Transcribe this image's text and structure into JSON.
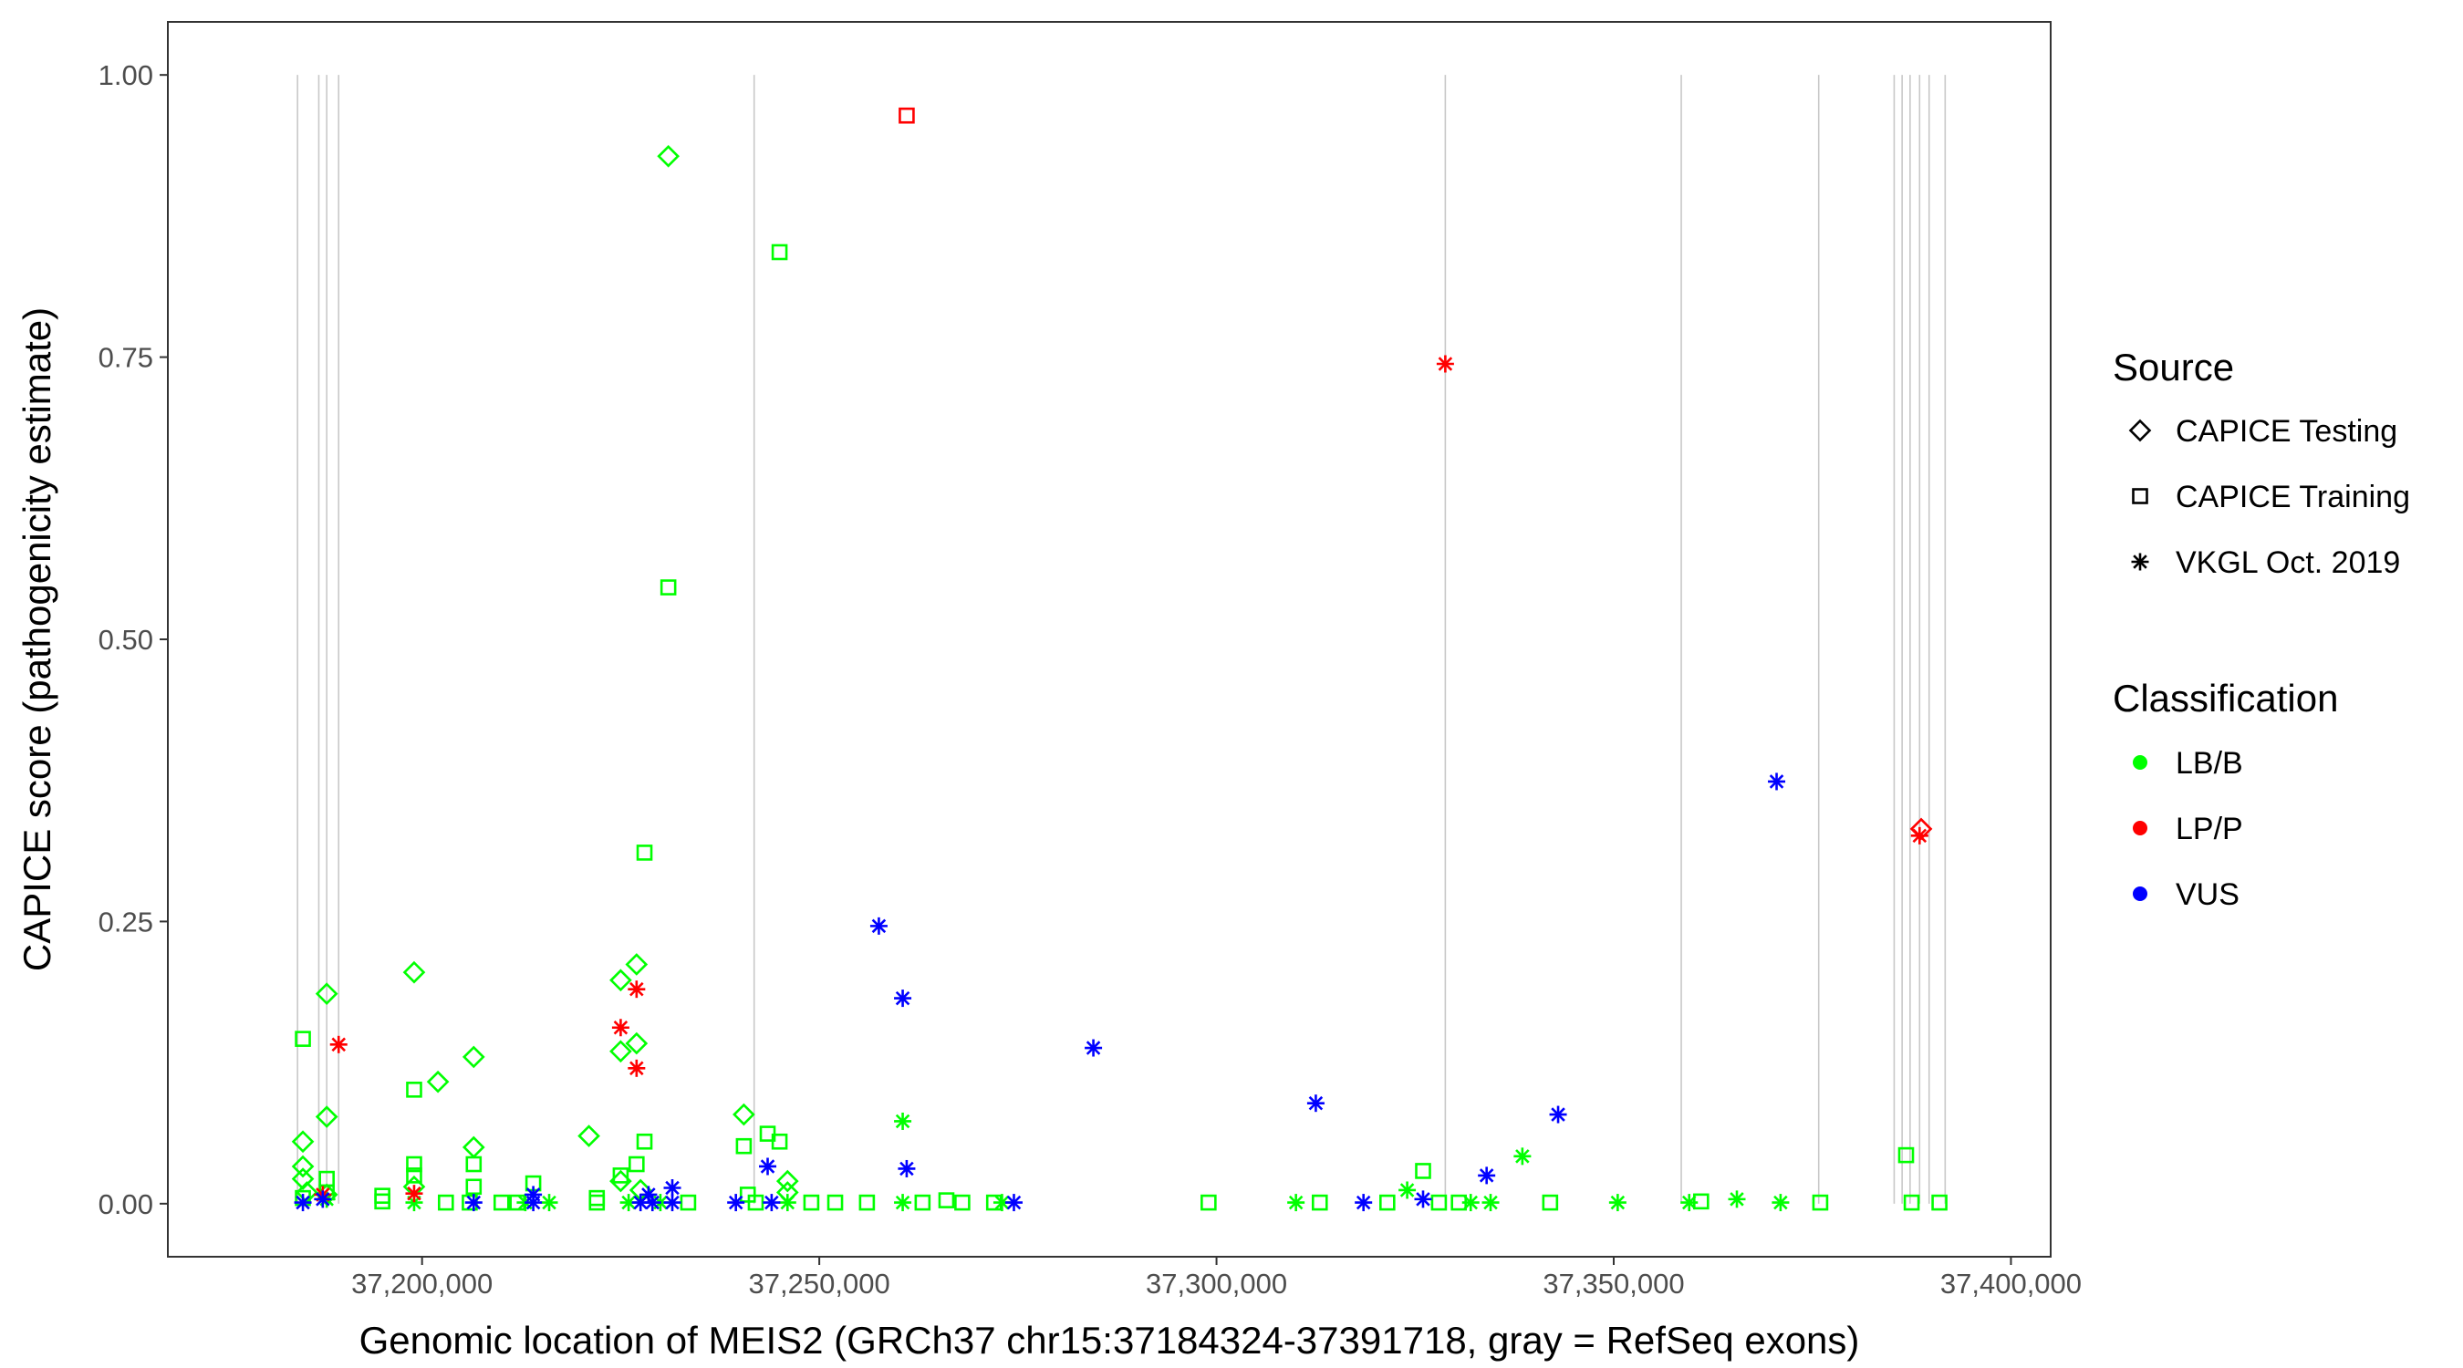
{
  "chart_data": {
    "type": "scatter",
    "title": "",
    "xlabel": "Genomic location of MEIS2 (GRCh37 chr15:37184324-37391718, gray = RefSeq exons)",
    "ylabel": "CAPICE score (pathogenicity estimate)",
    "xlim": [
      37168000,
      37405000
    ],
    "ylim": [
      -0.047,
      1.047
    ],
    "x_ticks": [
      37200000,
      37250000,
      37300000,
      37350000,
      37400000
    ],
    "x_tick_labels": [
      "37,200,000",
      "37,250,000",
      "37,300,000",
      "37,350,000",
      "37,400,000"
    ],
    "y_ticks": [
      0,
      0.25,
      0.5,
      0.75,
      1.0
    ],
    "y_tick_labels": [
      "0.00",
      "0.25",
      "0.50",
      "0.75",
      "1.00"
    ],
    "grid": false,
    "exon_lines_x": [
      37184324,
      37187000,
      37188000,
      37189500,
      37241800,
      37328800,
      37358500,
      37375800,
      37385300,
      37386300,
      37387300,
      37388500,
      37389700,
      37391718
    ],
    "legend_position": "right",
    "legend": {
      "source_title": "Source",
      "sources": [
        {
          "key": "testing",
          "label": "CAPICE Testing",
          "shape": "diamond"
        },
        {
          "key": "training",
          "label": "CAPICE Training",
          "shape": "square"
        },
        {
          "key": "vkgl",
          "label": "VKGL Oct. 2019",
          "shape": "asterisk"
        }
      ],
      "class_title": "Classification",
      "classes": [
        {
          "key": "LBB",
          "label": "LB/B",
          "color": "#00FF00"
        },
        {
          "key": "LPP",
          "label": "LP/P",
          "color": "#FF0000"
        },
        {
          "key": "VUS",
          "label": "VUS",
          "color": "#0000FF"
        }
      ]
    },
    "series": [
      {
        "name": "CAPICE Testing",
        "shape": "diamond",
        "points": [
          {
            "x": 37185000,
            "y": 0.055,
            "c": "LBB"
          },
          {
            "x": 37185000,
            "y": 0.033,
            "c": "LBB"
          },
          {
            "x": 37185000,
            "y": 0.022,
            "c": "LBB"
          },
          {
            "x": 37185500,
            "y": 0.01,
            "c": "LBB"
          },
          {
            "x": 37188000,
            "y": 0.186,
            "c": "LBB"
          },
          {
            "x": 37188000,
            "y": 0.077,
            "c": "LBB"
          },
          {
            "x": 37188000,
            "y": 0.008,
            "c": "LBB"
          },
          {
            "x": 37199000,
            "y": 0.205,
            "c": "LBB"
          },
          {
            "x": 37199000,
            "y": 0.015,
            "c": "LBB"
          },
          {
            "x": 37202000,
            "y": 0.108,
            "c": "LBB"
          },
          {
            "x": 37206500,
            "y": 0.13,
            "c": "LBB"
          },
          {
            "x": 37206500,
            "y": 0.05,
            "c": "LBB"
          },
          {
            "x": 37221000,
            "y": 0.06,
            "c": "LBB"
          },
          {
            "x": 37225000,
            "y": 0.198,
            "c": "LBB"
          },
          {
            "x": 37225000,
            "y": 0.135,
            "c": "LBB"
          },
          {
            "x": 37225000,
            "y": 0.02,
            "c": "LBB"
          },
          {
            "x": 37227000,
            "y": 0.212,
            "c": "LBB"
          },
          {
            "x": 37227000,
            "y": 0.142,
            "c": "LBB"
          },
          {
            "x": 37227500,
            "y": 0.012,
            "c": "LBB"
          },
          {
            "x": 37231000,
            "y": 0.928,
            "c": "LBB"
          },
          {
            "x": 37240500,
            "y": 0.079,
            "c": "LBB"
          },
          {
            "x": 37246000,
            "y": 0.02,
            "c": "LBB"
          },
          {
            "x": 37246000,
            "y": 0.01,
            "c": "LBB"
          },
          {
            "x": 37388700,
            "y": 0.332,
            "c": "LPP"
          }
        ]
      },
      {
        "name": "CAPICE Training",
        "shape": "square",
        "points": [
          {
            "x": 37185000,
            "y": 0.146,
            "c": "LBB"
          },
          {
            "x": 37185000,
            "y": 0.005,
            "c": "LBB"
          },
          {
            "x": 37188000,
            "y": 0.022,
            "c": "LBB"
          },
          {
            "x": 37188000,
            "y": 0.01,
            "c": "LBB"
          },
          {
            "x": 37195000,
            "y": 0.007,
            "c": "LBB"
          },
          {
            "x": 37195000,
            "y": 0.002,
            "c": "LBB"
          },
          {
            "x": 37199000,
            "y": 0.101,
            "c": "LBB"
          },
          {
            "x": 37199000,
            "y": 0.035,
            "c": "LBB"
          },
          {
            "x": 37199000,
            "y": 0.025,
            "c": "LBB"
          },
          {
            "x": 37203000,
            "y": 0.001,
            "c": "LBB"
          },
          {
            "x": 37206500,
            "y": 0.035,
            "c": "LBB"
          },
          {
            "x": 37206500,
            "y": 0.015,
            "c": "LBB"
          },
          {
            "x": 37206000,
            "y": 0.001,
            "c": "LBB"
          },
          {
            "x": 37210000,
            "y": 0.001,
            "c": "LBB"
          },
          {
            "x": 37212000,
            "y": 0.001,
            "c": "LBB"
          },
          {
            "x": 37214000,
            "y": 0.018,
            "c": "LBB"
          },
          {
            "x": 37222000,
            "y": 0.005,
            "c": "LBB"
          },
          {
            "x": 37222000,
            "y": 0.001,
            "c": "LBB"
          },
          {
            "x": 37225000,
            "y": 0.025,
            "c": "LBB"
          },
          {
            "x": 37227000,
            "y": 0.035,
            "c": "LBB"
          },
          {
            "x": 37228000,
            "y": 0.311,
            "c": "LBB"
          },
          {
            "x": 37228000,
            "y": 0.055,
            "c": "LBB"
          },
          {
            "x": 37231000,
            "y": 0.546,
            "c": "LBB"
          },
          {
            "x": 37233500,
            "y": 0.001,
            "c": "LBB"
          },
          {
            "x": 37240500,
            "y": 0.051,
            "c": "LBB"
          },
          {
            "x": 37241000,
            "y": 0.008,
            "c": "LBB"
          },
          {
            "x": 37242000,
            "y": 0.001,
            "c": "LBB"
          },
          {
            "x": 37243500,
            "y": 0.062,
            "c": "LBB"
          },
          {
            "x": 37245000,
            "y": 0.843,
            "c": "LBB"
          },
          {
            "x": 37245000,
            "y": 0.055,
            "c": "LBB"
          },
          {
            "x": 37249000,
            "y": 0.001,
            "c": "LBB"
          },
          {
            "x": 37252000,
            "y": 0.001,
            "c": "LBB"
          },
          {
            "x": 37256000,
            "y": 0.001,
            "c": "LBB"
          },
          {
            "x": 37263000,
            "y": 0.001,
            "c": "LBB"
          },
          {
            "x": 37266000,
            "y": 0.003,
            "c": "LBB"
          },
          {
            "x": 37268000,
            "y": 0.001,
            "c": "LBB"
          },
          {
            "x": 37272000,
            "y": 0.001,
            "c": "LBB"
          },
          {
            "x": 37299000,
            "y": 0.001,
            "c": "LBB"
          },
          {
            "x": 37313000,
            "y": 0.001,
            "c": "LBB"
          },
          {
            "x": 37321500,
            "y": 0.001,
            "c": "LBB"
          },
          {
            "x": 37326000,
            "y": 0.029,
            "c": "LBB"
          },
          {
            "x": 37328000,
            "y": 0.001,
            "c": "LBB"
          },
          {
            "x": 37330500,
            "y": 0.001,
            "c": "LBB"
          },
          {
            "x": 37342000,
            "y": 0.001,
            "c": "LBB"
          },
          {
            "x": 37361000,
            "y": 0.002,
            "c": "LBB"
          },
          {
            "x": 37376000,
            "y": 0.001,
            "c": "LBB"
          },
          {
            "x": 37386800,
            "y": 0.043,
            "c": "LBB"
          },
          {
            "x": 37387500,
            "y": 0.001,
            "c": "LBB"
          },
          {
            "x": 37391000,
            "y": 0.001,
            "c": "LBB"
          },
          {
            "x": 37261000,
            "y": 0.964,
            "c": "LPP"
          }
        ]
      },
      {
        "name": "VKGL Oct. 2019",
        "shape": "asterisk",
        "points": [
          {
            "x": 37188000,
            "y": 0.004,
            "c": "LBB"
          },
          {
            "x": 37199000,
            "y": 0.001,
            "c": "LBB"
          },
          {
            "x": 37213000,
            "y": 0.001,
            "c": "LBB"
          },
          {
            "x": 37216000,
            "y": 0.001,
            "c": "LBB"
          },
          {
            "x": 37226000,
            "y": 0.001,
            "c": "LBB"
          },
          {
            "x": 37230000,
            "y": 0.001,
            "c": "LBB"
          },
          {
            "x": 37246000,
            "y": 0.001,
            "c": "LBB"
          },
          {
            "x": 37260500,
            "y": 0.073,
            "c": "LBB"
          },
          {
            "x": 37260500,
            "y": 0.001,
            "c": "LBB"
          },
          {
            "x": 37273000,
            "y": 0.001,
            "c": "LBB"
          },
          {
            "x": 37310000,
            "y": 0.001,
            "c": "LBB"
          },
          {
            "x": 37324000,
            "y": 0.012,
            "c": "LBB"
          },
          {
            "x": 37332000,
            "y": 0.001,
            "c": "LBB"
          },
          {
            "x": 37334500,
            "y": 0.001,
            "c": "LBB"
          },
          {
            "x": 37338500,
            "y": 0.042,
            "c": "LBB"
          },
          {
            "x": 37350500,
            "y": 0.001,
            "c": "LBB"
          },
          {
            "x": 37359500,
            "y": 0.001,
            "c": "LBB"
          },
          {
            "x": 37365500,
            "y": 0.004,
            "c": "LBB"
          },
          {
            "x": 37371000,
            "y": 0.001,
            "c": "LBB"
          },
          {
            "x": 37189500,
            "y": 0.141,
            "c": "LPP"
          },
          {
            "x": 37187500,
            "y": 0.008,
            "c": "LPP"
          },
          {
            "x": 37199000,
            "y": 0.009,
            "c": "LPP"
          },
          {
            "x": 37225000,
            "y": 0.156,
            "c": "LPP"
          },
          {
            "x": 37227000,
            "y": 0.19,
            "c": "LPP"
          },
          {
            "x": 37227000,
            "y": 0.12,
            "c": "LPP"
          },
          {
            "x": 37328800,
            "y": 0.744,
            "c": "LPP"
          },
          {
            "x": 37388500,
            "y": 0.326,
            "c": "LPP"
          },
          {
            "x": 37185000,
            "y": 0.001,
            "c": "VUS"
          },
          {
            "x": 37187500,
            "y": 0.004,
            "c": "VUS"
          },
          {
            "x": 37206500,
            "y": 0.001,
            "c": "VUS"
          },
          {
            "x": 37214000,
            "y": 0.008,
            "c": "VUS"
          },
          {
            "x": 37214000,
            "y": 0.001,
            "c": "VUS"
          },
          {
            "x": 37227500,
            "y": 0.001,
            "c": "VUS"
          },
          {
            "x": 37228500,
            "y": 0.008,
            "c": "VUS"
          },
          {
            "x": 37229000,
            "y": 0.001,
            "c": "VUS"
          },
          {
            "x": 37231500,
            "y": 0.014,
            "c": "VUS"
          },
          {
            "x": 37231500,
            "y": 0.001,
            "c": "VUS"
          },
          {
            "x": 37239500,
            "y": 0.001,
            "c": "VUS"
          },
          {
            "x": 37243500,
            "y": 0.033,
            "c": "VUS"
          },
          {
            "x": 37244000,
            "y": 0.001,
            "c": "VUS"
          },
          {
            "x": 37257500,
            "y": 0.246,
            "c": "VUS"
          },
          {
            "x": 37260500,
            "y": 0.182,
            "c": "VUS"
          },
          {
            "x": 37261000,
            "y": 0.031,
            "c": "VUS"
          },
          {
            "x": 37274500,
            "y": 0.001,
            "c": "VUS"
          },
          {
            "x": 37284500,
            "y": 0.138,
            "c": "VUS"
          },
          {
            "x": 37312500,
            "y": 0.089,
            "c": "VUS"
          },
          {
            "x": 37318500,
            "y": 0.001,
            "c": "VUS"
          },
          {
            "x": 37326000,
            "y": 0.004,
            "c": "VUS"
          },
          {
            "x": 37334000,
            "y": 0.025,
            "c": "VUS"
          },
          {
            "x": 37343000,
            "y": 0.079,
            "c": "VUS"
          },
          {
            "x": 37370500,
            "y": 0.374,
            "c": "VUS"
          }
        ]
      }
    ]
  }
}
